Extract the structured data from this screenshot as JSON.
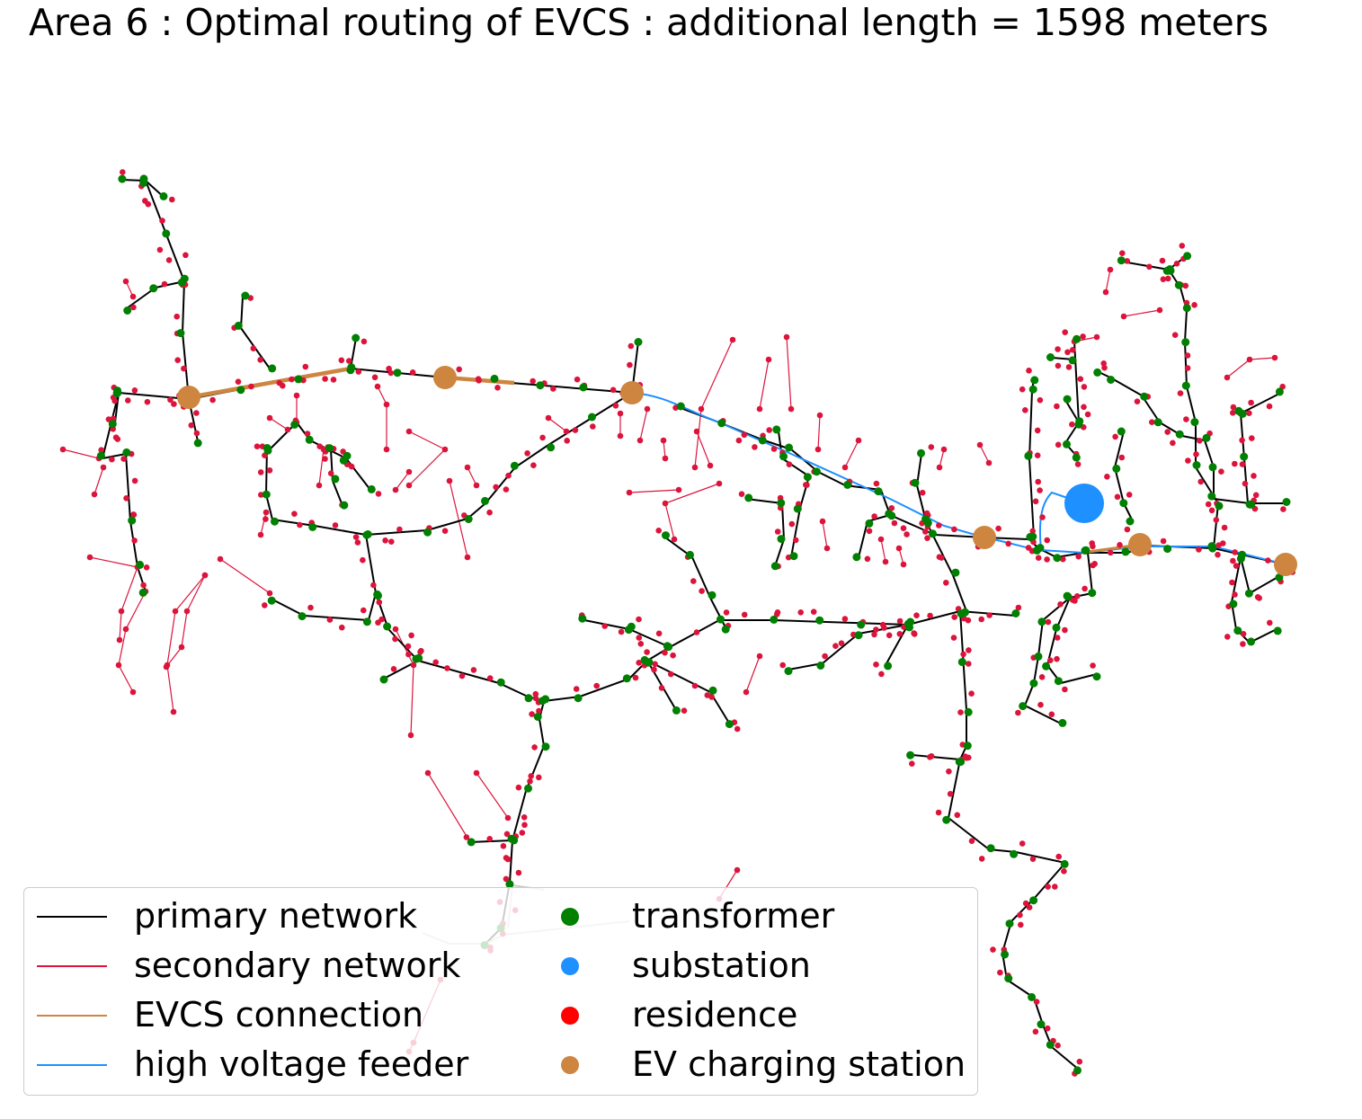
{
  "title": "Area 6 : Optimal routing of EVCS : additional length = 1598 meters",
  "colors": {
    "primary": "#000000",
    "secondary": "#dc143c",
    "evcs": "#cd853f",
    "feeder": "#1e90ff",
    "transformer": "#008000",
    "substation": "#1e90ff",
    "residence": "#ff0000",
    "residence_marker": "#dc143c",
    "charging_station": "#cd853f"
  },
  "legend": {
    "lines": [
      {
        "label": "primary network",
        "color": "#000000"
      },
      {
        "label": "secondary network",
        "color": "#dc143c"
      },
      {
        "label": "EVCS connection",
        "color": "#cd853f"
      },
      {
        "label": "high voltage feeder",
        "color": "#1e90ff"
      }
    ],
    "markers": [
      {
        "label": "transformer",
        "color": "#008000"
      },
      {
        "label": "substation",
        "color": "#1e90ff"
      },
      {
        "label": "residence",
        "color": "#ff0000"
      },
      {
        "label": "EV charging station",
        "color": "#cd853f"
      }
    ]
  }
}
